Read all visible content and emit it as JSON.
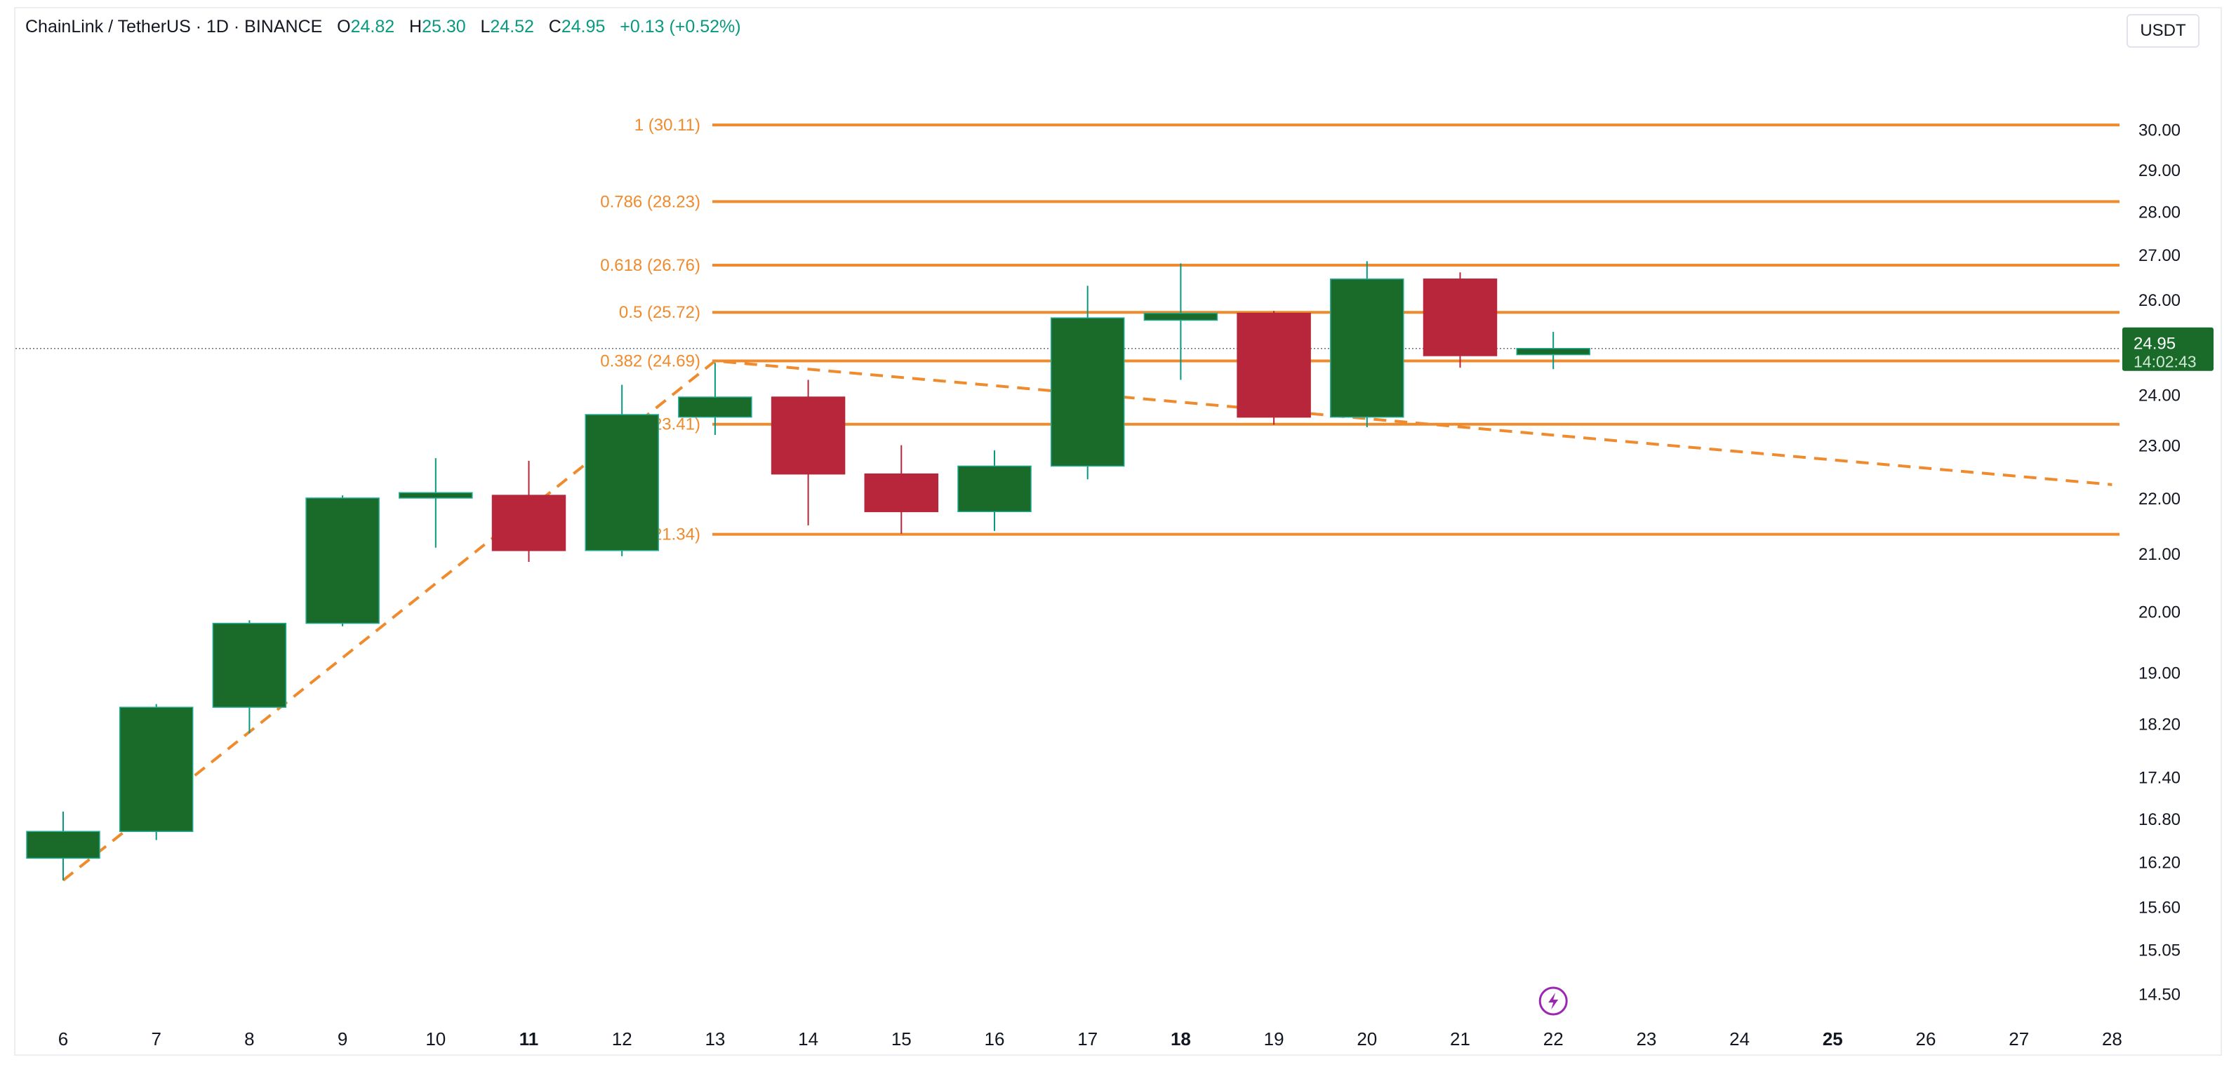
{
  "header": {
    "symbol": "ChainLink / TetherUS · 1D · BINANCE",
    "o_label": "O",
    "o_value": "24.82",
    "h_label": "H",
    "h_value": "25.30",
    "l_label": "L",
    "l_value": "24.52",
    "c_label": "C",
    "c_value": "24.95",
    "change": "+0.13 (+0.52%)"
  },
  "currency_button": "USDT",
  "colors": {
    "up": "#1a6b2a",
    "down": "#b7263a",
    "fib": "#ef8b2c",
    "text_up": "#089981"
  },
  "price_badge": {
    "price": "24.95",
    "countdown": "14:02:43"
  },
  "alert_icon": "lightning-bolt-icon",
  "chart_data": {
    "type": "candlestick",
    "scale": "log",
    "y_range": [
      14.3,
      32.0
    ],
    "y_ticks": [
      "30.00",
      "29.00",
      "28.00",
      "27.00",
      "26.00",
      "24.00",
      "23.00",
      "22.00",
      "21.00",
      "20.00",
      "19.00",
      "18.20",
      "17.40",
      "16.80",
      "16.20",
      "15.60",
      "15.05",
      "14.50"
    ],
    "x_ticks": [
      {
        "label": "6",
        "bold": false
      },
      {
        "label": "7",
        "bold": false
      },
      {
        "label": "8",
        "bold": false
      },
      {
        "label": "9",
        "bold": false
      },
      {
        "label": "10",
        "bold": false
      },
      {
        "label": "11",
        "bold": true
      },
      {
        "label": "12",
        "bold": false
      },
      {
        "label": "13",
        "bold": false
      },
      {
        "label": "14",
        "bold": false
      },
      {
        "label": "15",
        "bold": false
      },
      {
        "label": "16",
        "bold": false
      },
      {
        "label": "17",
        "bold": false
      },
      {
        "label": "18",
        "bold": true
      },
      {
        "label": "19",
        "bold": false
      },
      {
        "label": "20",
        "bold": false
      },
      {
        "label": "21",
        "bold": false
      },
      {
        "label": "22",
        "bold": false
      },
      {
        "label": "23",
        "bold": false
      },
      {
        "label": "24",
        "bold": false
      },
      {
        "label": "25",
        "bold": true
      },
      {
        "label": "26",
        "bold": false
      },
      {
        "label": "27",
        "bold": false
      },
      {
        "label": "28",
        "bold": false
      }
    ],
    "candles": [
      {
        "day": "6",
        "o": 16.25,
        "h": 16.9,
        "l": 15.95,
        "c": 16.62
      },
      {
        "day": "7",
        "o": 16.62,
        "h": 18.5,
        "l": 16.5,
        "c": 18.45
      },
      {
        "day": "8",
        "o": 18.45,
        "h": 19.85,
        "l": 18.05,
        "c": 19.8
      },
      {
        "day": "9",
        "o": 19.8,
        "h": 22.05,
        "l": 19.75,
        "c": 22.0
      },
      {
        "day": "10",
        "o": 22.0,
        "h": 22.75,
        "l": 21.1,
        "c": 22.1
      },
      {
        "day": "11",
        "o": 22.05,
        "h": 22.7,
        "l": 20.85,
        "c": 21.05
      },
      {
        "day": "12",
        "o": 21.05,
        "h": 24.2,
        "l": 20.95,
        "c": 23.6
      },
      {
        "day": "13",
        "o": 23.55,
        "h": 24.65,
        "l": 23.2,
        "c": 23.95
      },
      {
        "day": "14",
        "o": 23.95,
        "h": 24.3,
        "l": 21.5,
        "c": 22.45
      },
      {
        "day": "15",
        "o": 22.45,
        "h": 23.0,
        "l": 21.35,
        "c": 21.75
      },
      {
        "day": "16",
        "o": 21.75,
        "h": 22.9,
        "l": 21.4,
        "c": 22.6
      },
      {
        "day": "17",
        "o": 22.6,
        "h": 26.3,
        "l": 22.35,
        "c": 25.6
      },
      {
        "day": "18",
        "o": 25.55,
        "h": 26.8,
        "l": 24.3,
        "c": 25.7
      },
      {
        "day": "19",
        "o": 25.7,
        "h": 25.75,
        "l": 23.4,
        "c": 23.55
      },
      {
        "day": "20",
        "o": 23.55,
        "h": 26.85,
        "l": 23.35,
        "c": 26.45
      },
      {
        "day": "21",
        "o": 26.45,
        "h": 26.6,
        "l": 24.55,
        "c": 24.8
      },
      {
        "day": "22",
        "o": 24.82,
        "h": 25.3,
        "l": 24.52,
        "c": 24.95
      }
    ],
    "fib_levels": [
      {
        "label": "1 (30.11)",
        "value": 30.11
      },
      {
        "label": "0.786 (28.23)",
        "value": 28.23
      },
      {
        "label": "0.618 (26.76)",
        "value": 26.76
      },
      {
        "label": "0.5 (25.72)",
        "value": 25.72
      },
      {
        "label": "0.382 (24.69)",
        "value": 24.69
      },
      {
        "label": "0.236 (23.41)",
        "value": 23.41
      },
      {
        "label": "0 (21.34)",
        "value": 21.34
      }
    ],
    "trend_path": [
      {
        "day": "6",
        "value": 15.95
      },
      {
        "day": "13",
        "value": 24.69
      },
      {
        "day": "28",
        "value": 22.25
      }
    ],
    "last_price_line": 24.95
  }
}
